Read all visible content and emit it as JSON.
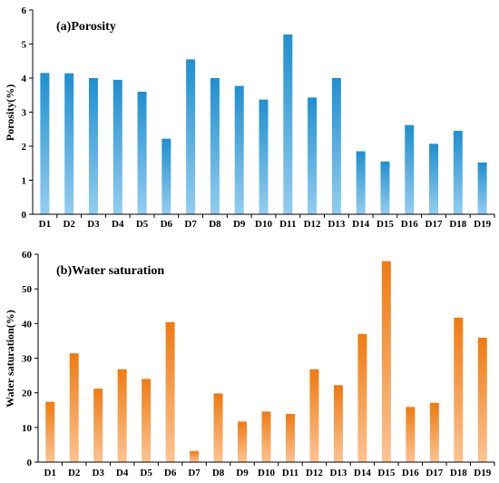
{
  "chart_data": [
    {
      "type": "bar",
      "title": "(a)Porosity",
      "xlabel": "",
      "ylabel": "Porosity(%)",
      "ylim": [
        0,
        6
      ],
      "yticks": [
        0,
        1,
        2,
        3,
        4,
        5,
        6
      ],
      "categories": [
        "D1",
        "D2",
        "D3",
        "D4",
        "D5",
        "D6",
        "D7",
        "D8",
        "D9",
        "D10",
        "D11",
        "D12",
        "D13",
        "D14",
        "D15",
        "D16",
        "D17",
        "D18",
        "D19"
      ],
      "values": [
        4.15,
        4.14,
        4.0,
        3.95,
        3.6,
        2.22,
        4.55,
        4.0,
        3.77,
        3.37,
        5.28,
        3.43,
        4.0,
        1.85,
        1.55,
        2.62,
        2.07,
        2.45,
        1.52
      ],
      "color_top": "#1f8fd0",
      "color_bottom": "#93cdf0",
      "grid": false,
      "legend": "none"
    },
    {
      "type": "bar",
      "title": "(b)Water saturation",
      "xlabel": "",
      "ylabel": "Water saturation(%)",
      "ylim": [
        0,
        60
      ],
      "yticks": [
        0,
        10,
        20,
        30,
        40,
        50,
        60
      ],
      "categories": [
        "D1",
        "D2",
        "D3",
        "D4",
        "D5",
        "D6",
        "D7",
        "D8",
        "D9",
        "D10",
        "D11",
        "D12",
        "D13",
        "D14",
        "D15",
        "D16",
        "D17",
        "D18",
        "D19"
      ],
      "values": [
        17.4,
        31.4,
        21.2,
        26.8,
        24.0,
        40.4,
        3.2,
        19.8,
        11.7,
        14.6,
        13.9,
        26.8,
        22.2,
        37.0,
        58.0,
        15.9,
        17.1,
        41.7,
        35.9
      ],
      "color_top": "#f07a12",
      "color_bottom": "#fbc493",
      "grid": false,
      "legend": "none"
    }
  ]
}
